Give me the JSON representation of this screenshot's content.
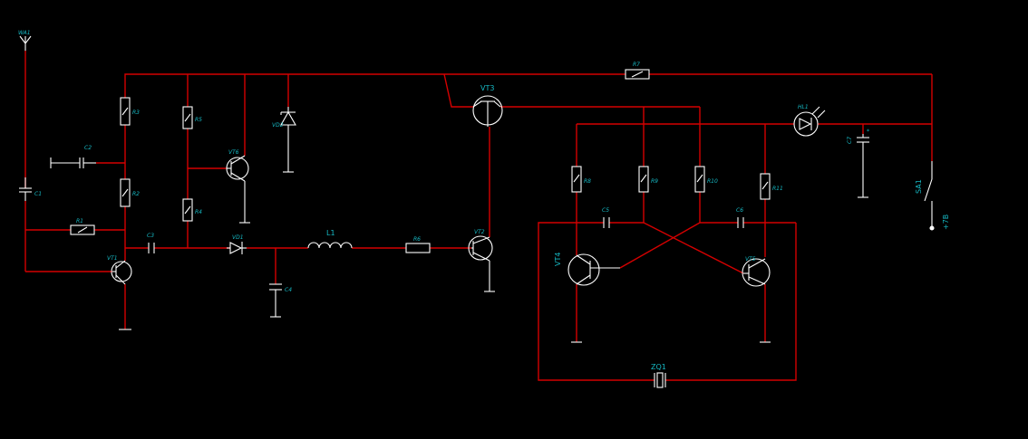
{
  "colors": {
    "background": "#000000",
    "wire": "#d40000",
    "component": "#ffffff",
    "label": "#16b9c4"
  },
  "labels": {
    "wa1": "WA1",
    "c1": "C1",
    "c2": "C2",
    "r1": "R1",
    "r2": "R2",
    "r3": "R3",
    "r4": "R4",
    "r5": "R5",
    "vt1": "VT1",
    "vt6": "VT6",
    "vd2": "VD2",
    "c3": "C3",
    "vd1": "VD1",
    "c4": "C4",
    "l1": "L1",
    "r6": "R6",
    "vt2": "VT2",
    "vt3": "VT3",
    "r7": "R7",
    "r8": "R8",
    "r9": "R9",
    "r10": "R10",
    "r11": "R11",
    "c5": "C5",
    "c6": "C6",
    "vt4": "VT4",
    "vt5": "VT5",
    "zq1": "ZQ1",
    "hl1": "HL1",
    "c7": "C7",
    "sa1": "SA1",
    "plus7v": "+7В"
  }
}
